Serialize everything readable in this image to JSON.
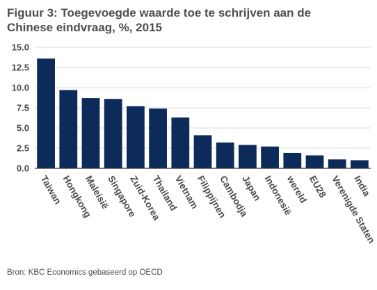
{
  "title_line1": "Figuur 3: Toegevoegde waarde toe te schrijven aan de",
  "title_line2": "Chinese eindvraag, %, 2015",
  "source": "Bron: KBC Economics gebaseerd op OECD",
  "colors": {
    "bar": "#0c2a5a",
    "grid": "#d9d9d9",
    "axis": "#333333"
  },
  "chart_data": {
    "type": "bar",
    "title": "Figuur 3: Toegevoegde waarde toe te schrijven aan de Chinese eindvraag, %, 2015",
    "categories": [
      "Taiwan",
      "Hongkong",
      "Maleisië",
      "Singapore",
      "Zuid-Korea",
      "Thailand",
      "Vietnam",
      "Filippijnen",
      "Cambodja",
      "Japan",
      "Indonesië",
      "wereld",
      "EU28",
      "Verenigde Staten",
      "India"
    ],
    "values": [
      13.6,
      9.7,
      8.7,
      8.6,
      7.7,
      7.4,
      6.3,
      4.1,
      3.2,
      2.9,
      2.7,
      1.9,
      1.6,
      1.1,
      1.0
    ],
    "yticks": [
      "0.0",
      "2.5",
      "5.0",
      "7.5",
      "10.0",
      "12.5",
      "15.0"
    ],
    "ylim": [
      0,
      15
    ],
    "xlabel": "",
    "ylabel": "",
    "grid": true,
    "legend": "none"
  }
}
